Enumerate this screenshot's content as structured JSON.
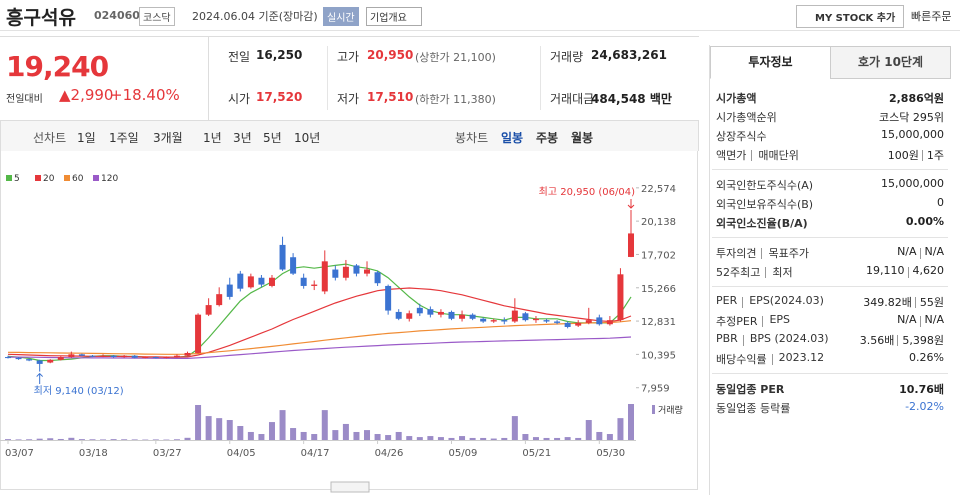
{
  "header": {
    "name": "흥구석유",
    "code": "024060",
    "market": "코스닥",
    "date": "2024.06.04 기준(장마감)",
    "realtime": "실시간",
    "company_info": "기업개요",
    "my_stock": "MY STOCK 추가",
    "quick_order": "빠른주문"
  },
  "quote": {
    "price": "19,240",
    "change_label": "전일대비",
    "change": "▲2,990",
    "change_pct": "+18.40%"
  },
  "stats": [
    [
      {
        "label": "전일",
        "value": "16,250"
      },
      {
        "label": "고가",
        "value": "20,950",
        "note": "(상한가 21,100)",
        "color": "#e5373b"
      },
      {
        "label": "거래량",
        "value": "24,683,261"
      }
    ],
    [
      {
        "label": "시가",
        "value": "17,520",
        "color": "#e5373b"
      },
      {
        "label": "저가",
        "value": "17,510",
        "note": "(하한가 11,380)",
        "color": "#e5373b"
      },
      {
        "label": "거래대금",
        "value": "484,548 백만"
      }
    ]
  ],
  "periods": {
    "line_label": "선차트",
    "line": [
      "1일",
      "1주일",
      "3개월",
      "1년",
      "3년",
      "5년",
      "10년"
    ],
    "candle_label": "봉차트",
    "candle": [
      "일봉",
      "주봉",
      "월봉"
    ],
    "selected": "일봉"
  },
  "chart_data": {
    "type": "candlestick",
    "categories": [
      "03/07",
      null,
      null,
      null,
      null,
      null,
      null,
      "03/18",
      null,
      null,
      null,
      null,
      null,
      null,
      "03/27",
      null,
      null,
      null,
      null,
      null,
      null,
      "04/05",
      null,
      null,
      null,
      null,
      null,
      null,
      "04/17",
      null,
      null,
      null,
      null,
      null,
      null,
      "04/26",
      null,
      null,
      null,
      null,
      null,
      null,
      "05/09",
      null,
      null,
      null,
      null,
      null,
      null,
      "05/21",
      null,
      null,
      null,
      null,
      null,
      null,
      "05/30",
      null,
      null,
      null
    ],
    "open": [
      10200,
      10150,
      10050,
      9950,
      9800,
      10000,
      10200,
      10400,
      10300,
      10250,
      10300,
      10200,
      10300,
      10150,
      10200,
      10150,
      10200,
      10300,
      10500,
      13300,
      14000,
      15500,
      16300,
      15300,
      16000,
      15400,
      18400,
      17500,
      16000,
      15400,
      15000,
      16600,
      16000,
      16900,
      16300,
      16400,
      15400,
      13500,
      13000,
      13800,
      13700,
      13300,
      13500,
      13000,
      13300,
      13000,
      12800,
      12900,
      12800,
      13400,
      12900,
      12900,
      12800,
      12700,
      12500,
      12700,
      13100,
      12600,
      12900,
      17520
    ],
    "close": [
      10150,
      10050,
      9950,
      9700,
      10000,
      10200,
      10400,
      10300,
      10250,
      10300,
      10200,
      10300,
      10150,
      10200,
      10150,
      10200,
      10300,
      10500,
      13300,
      14000,
      14800,
      14600,
      15200,
      16100,
      15500,
      16000,
      16600,
      16300,
      15400,
      15500,
      17200,
      16000,
      16800,
      16300,
      16600,
      15600,
      13600,
      13000,
      13400,
      13400,
      13300,
      13500,
      13000,
      13300,
      13000,
      12800,
      12900,
      12800,
      13600,
      12900,
      13000,
      12800,
      12700,
      12400,
      12700,
      12900,
      12600,
      12900,
      16250,
      19240
    ],
    "high": [
      10300,
      10200,
      10100,
      10000,
      10050,
      10250,
      10600,
      10450,
      10350,
      10400,
      10350,
      10350,
      10350,
      10250,
      10250,
      10250,
      10400,
      10600,
      13400,
      14500,
      15300,
      16000,
      16500,
      16300,
      16200,
      16200,
      19000,
      17800,
      16300,
      15800,
      18000,
      16900,
      17300,
      17000,
      17200,
      16500,
      15500,
      13700,
      13600,
      14100,
      13900,
      13700,
      13600,
      13600,
      13400,
      13100,
      13000,
      13100,
      14500,
      13500,
      13200,
      13000,
      12900,
      12800,
      12900,
      13800,
      13300,
      13200,
      16700,
      20950
    ],
    "low": [
      10100,
      10000,
      9900,
      9140,
      9750,
      9950,
      10150,
      10250,
      10200,
      10200,
      10150,
      10150,
      10100,
      10100,
      10100,
      10100,
      10150,
      10250,
      10450,
      13200,
      13900,
      14400,
      15000,
      15200,
      15300,
      15300,
      16500,
      16200,
      15200,
      15100,
      14800,
      15800,
      15800,
      16100,
      16100,
      15400,
      13300,
      12900,
      12800,
      13200,
      13100,
      13100,
      12900,
      12800,
      12900,
      12700,
      12700,
      12600,
      12700,
      12800,
      12700,
      12700,
      12600,
      12300,
      12400,
      12600,
      12500,
      12500,
      12800,
      17510
    ],
    "volume": [
      600000,
      400000,
      500000,
      900000,
      1200000,
      700000,
      1500000,
      600000,
      500000,
      400000,
      600000,
      500000,
      400000,
      300000,
      400000,
      300000,
      500000,
      1500000,
      24000000,
      16400000,
      15000000,
      13700000,
      9600000,
      5500000,
      4100000,
      12300000,
      20500000,
      8200000,
      5500000,
      4100000,
      20500000,
      6800000,
      11000000,
      5500000,
      6800000,
      4100000,
      3400000,
      5500000,
      2700000,
      2000000,
      2700000,
      2000000,
      1400000,
      2700000,
      1400000,
      1400000,
      1000000,
      1400000,
      16400000,
      4100000,
      2000000,
      1400000,
      1400000,
      2000000,
      1400000,
      13700000,
      5500000,
      4100000,
      15000000,
      24683261
    ],
    "volume_label": "거래량",
    "volume_color": "#9b8bc7",
    "up_color": "#e5373b",
    "down_color": "#3b73d1",
    "series": [
      {
        "name": "5",
        "color": "#54b848",
        "values": [
          10250,
          10200,
          10100,
          9950,
          9950,
          10000,
          10050,
          10150,
          10250,
          10300,
          10300,
          10250,
          10250,
          10200,
          10200,
          10200,
          10200,
          10250,
          10800,
          11600,
          12500,
          13400,
          14300,
          14900,
          15300,
          15700,
          16300,
          16700,
          16800,
          16700,
          16800,
          16900,
          17000,
          16800,
          16700,
          16500,
          16000,
          15300,
          14600,
          14000,
          13600,
          13400,
          13300,
          13300,
          13200,
          13100,
          13000,
          12900,
          13100,
          13100,
          13000,
          13000,
          13000,
          12800,
          12700,
          12700,
          12700,
          12700,
          13400,
          14600
        ]
      },
      {
        "name": "20",
        "color": "#e5373b",
        "values": [
          10400,
          10380,
          10350,
          10320,
          10300,
          10290,
          10280,
          10270,
          10260,
          10250,
          10250,
          10240,
          10230,
          10220,
          10210,
          10200,
          10200,
          10210,
          10350,
          10550,
          10800,
          11050,
          11350,
          11650,
          11950,
          12250,
          12600,
          12950,
          13250,
          13550,
          13850,
          14150,
          14400,
          14650,
          14850,
          15050,
          15150,
          15200,
          15250,
          15200,
          15150,
          15050,
          14900,
          14750,
          14550,
          14350,
          14150,
          13950,
          13800,
          13650,
          13500,
          13350,
          13250,
          13150,
          13050,
          12950,
          12850,
          12800,
          12900,
          13200
        ]
      },
      {
        "name": "60",
        "color": "#f08c34",
        "values": [
          10550,
          10540,
          10530,
          10520,
          10510,
          10500,
          10490,
          10480,
          10470,
          10460,
          10450,
          10440,
          10430,
          10420,
          10410,
          10400,
          10400,
          10410,
          10460,
          10520,
          10590,
          10660,
          10740,
          10820,
          10900,
          10980,
          11070,
          11160,
          11250,
          11340,
          11430,
          11520,
          11610,
          11700,
          11780,
          11860,
          11930,
          11990,
          12050,
          12110,
          12160,
          12210,
          12260,
          12300,
          12340,
          12380,
          12420,
          12460,
          12500,
          12530,
          12560,
          12590,
          12620,
          12650,
          12670,
          12690,
          12710,
          12730,
          12780,
          12860
        ]
      },
      {
        "name": "120",
        "color": "#9a5ac8",
        "values": [
          10200,
          10200,
          10190,
          10180,
          10170,
          10160,
          10150,
          10150,
          10140,
          10140,
          10130,
          10130,
          10120,
          10120,
          10110,
          10110,
          10100,
          10100,
          10150,
          10200,
          10260,
          10320,
          10380,
          10440,
          10500,
          10560,
          10620,
          10680,
          10730,
          10780,
          10830,
          10880,
          10920,
          10960,
          11000,
          11040,
          11080,
          11120,
          11150,
          11180,
          11210,
          11240,
          11270,
          11300,
          11320,
          11340,
          11360,
          11380,
          11400,
          11420,
          11440,
          11460,
          11480,
          11500,
          11520,
          11540,
          11560,
          11580,
          11620,
          11670
        ]
      }
    ],
    "ylim": [
      7500,
      23000
    ],
    "yticks": [
      {
        "value": 22574,
        "label": "22,574"
      },
      {
        "value": 20138,
        "label": "20,138"
      },
      {
        "value": 17702,
        "label": "17,702"
      },
      {
        "value": 15266,
        "label": "15,266"
      },
      {
        "value": 12831,
        "label": "12,831"
      },
      {
        "value": 10395,
        "label": "10,395"
      },
      {
        "value": 7959,
        "label": "7,959"
      }
    ],
    "annotations": {
      "high": "최고 20,950 (06/04)",
      "low": "최저 9,140 (03/12)"
    }
  },
  "invest": {
    "tabs": [
      "투자정보",
      "호가 10단계"
    ],
    "sections": [
      [
        {
          "label": [
            "시가총액"
          ],
          "value": [
            "2,886억원"
          ],
          "bold": true
        },
        {
          "label": [
            "시가총액순위"
          ],
          "value": [
            "코스닥 295위"
          ]
        },
        {
          "label": [
            "상장주식수"
          ],
          "value": [
            "15,000,000"
          ]
        },
        {
          "label": [
            "액면가",
            "매매단위"
          ],
          "value": [
            "100원",
            "1주"
          ]
        }
      ],
      [
        {
          "label": [
            "외국인한도주식수(A)"
          ],
          "value": [
            "15,000,000"
          ]
        },
        {
          "label": [
            "외국인보유주식수(B)"
          ],
          "value": [
            "0"
          ]
        },
        {
          "label": [
            "외국인소진율(B/A)"
          ],
          "value": [
            "0.00%"
          ],
          "bold": true
        }
      ],
      [
        {
          "label": [
            "투자의견",
            "목표주가"
          ],
          "value": [
            "N/A",
            "N/A"
          ]
        },
        {
          "label": [
            "52주최고",
            "최저"
          ],
          "value": [
            "19,110",
            "4,620"
          ]
        }
      ],
      [
        {
          "label": [
            "PER",
            "EPS(2024.03)"
          ],
          "value": [
            "349.82배",
            "55원"
          ]
        },
        {
          "label": [
            "추정PER",
            "EPS"
          ],
          "value": [
            "N/A",
            "N/A"
          ]
        },
        {
          "label": [
            "PBR",
            "BPS (2024.03)"
          ],
          "value": [
            "3.56배",
            "5,398원"
          ]
        },
        {
          "label": [
            "배당수익률",
            "2023.12"
          ],
          "value": [
            "0.26%"
          ]
        }
      ],
      [
        {
          "label": [
            "동일업종 PER"
          ],
          "value": [
            "10.76배"
          ],
          "bold": true
        },
        {
          "label": [
            "동일업종 등락률"
          ],
          "value": [
            "-2.02%"
          ],
          "color": "#3b73d1"
        }
      ]
    ]
  }
}
